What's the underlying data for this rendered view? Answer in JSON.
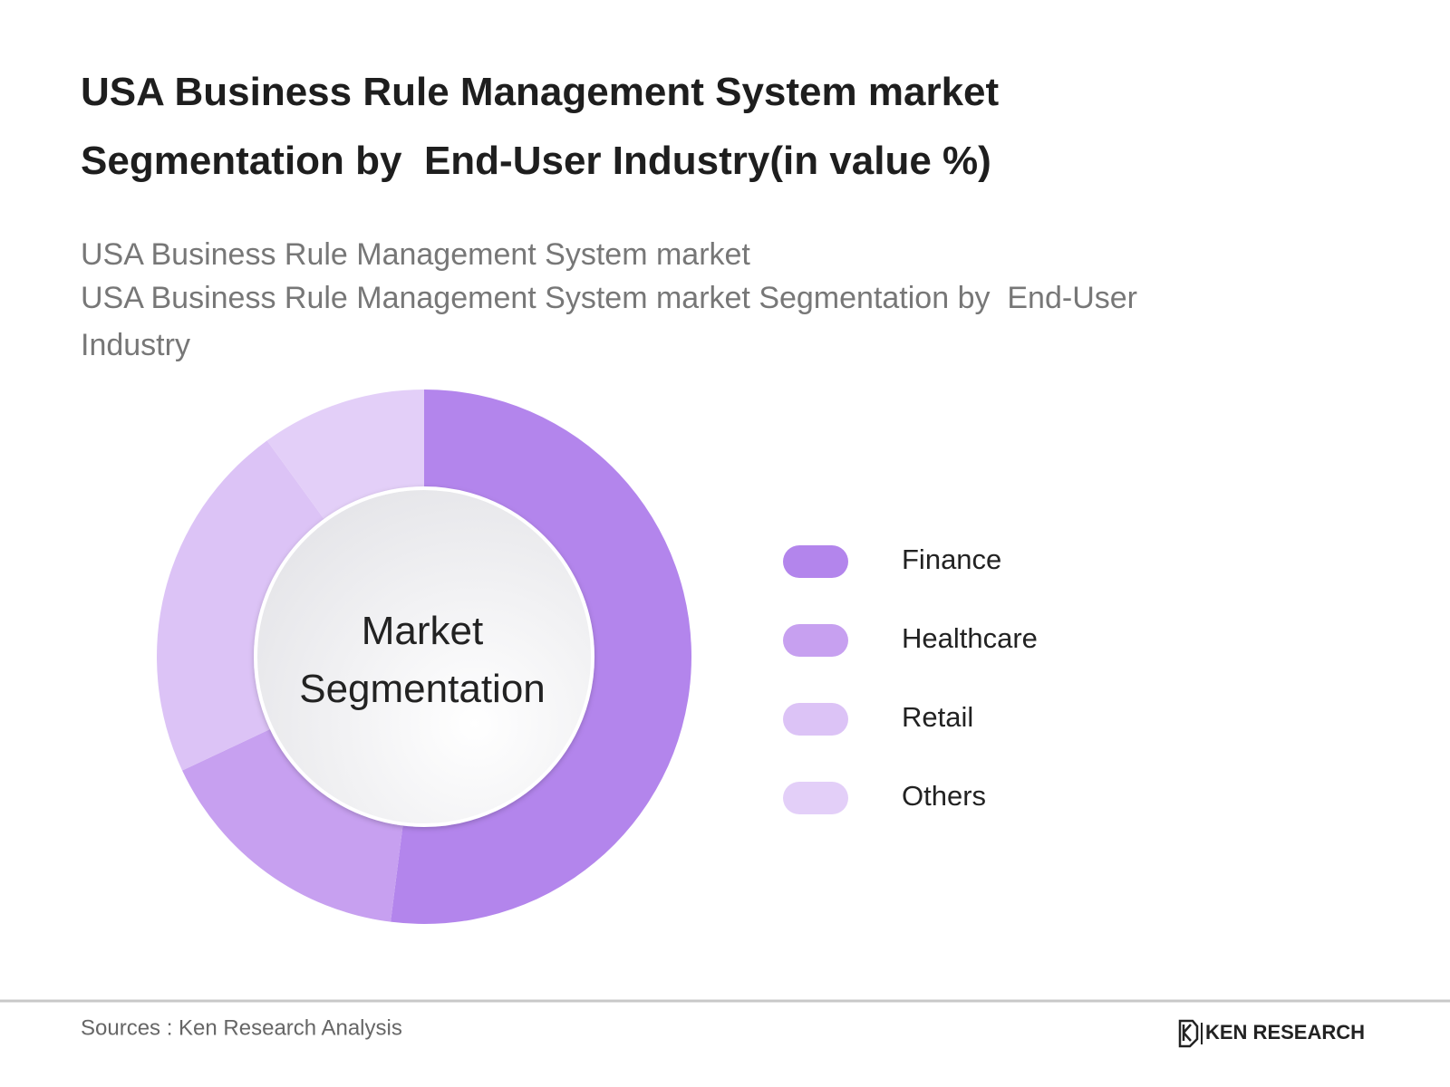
{
  "chart_data": {
    "type": "donut",
    "title": "USA Business Rule Management System market Segmentation by  End-User Industry(in value %)",
    "subtitle": [
      "USA Business Rule Management System market",
      "USA Business Rule Management System market Segmentation by  End-User Industry"
    ],
    "center_label": "Market Segmentation",
    "categories": [
      "Finance",
      "Healthcare",
      "Retail",
      "Others"
    ],
    "values": [
      52,
      16,
      22,
      10
    ],
    "colors": [
      "#b385ec",
      "#c7a0f0",
      "#dcc3f6",
      "#e3cff8"
    ],
    "source": "Sources : Ken Research Analysis",
    "brand": "KEN RESEARCH"
  }
}
